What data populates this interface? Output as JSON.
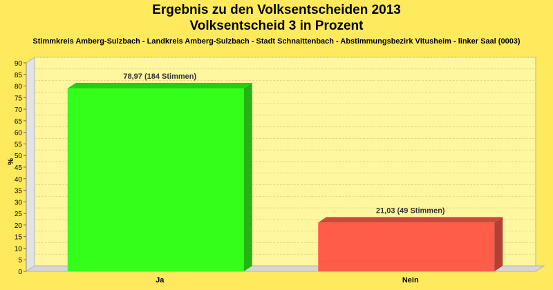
{
  "chart": {
    "title": "Ergebnis zu den Volksentscheiden 2013",
    "subtitle": "Volksentscheid 3 in Prozent",
    "caption": "Stimmkreis Amberg-Sulzbach - Landkreis Amberg-Sulzbach - Stadt Schnaittenbach - Abstimmungsbezirk Vitusheim - linker Saal (0003)",
    "ylabel": "%"
  },
  "chart_data": {
    "type": "bar",
    "categories": [
      "Ja",
      "Nein"
    ],
    "values": [
      78.97,
      21.03
    ],
    "data_labels": [
      "78,97 (184 Stimmen)",
      "21,03 (49 Stimmen)"
    ],
    "colors": [
      "#33ff1a",
      "#ff5c4a"
    ],
    "ylabel": "%",
    "ylim": [
      0,
      90
    ],
    "yticks": [
      0,
      5,
      10,
      15,
      20,
      25,
      30,
      35,
      40,
      45,
      50,
      55,
      60,
      65,
      70,
      75,
      80,
      85,
      90
    ],
    "grid": true,
    "legend": "none"
  }
}
